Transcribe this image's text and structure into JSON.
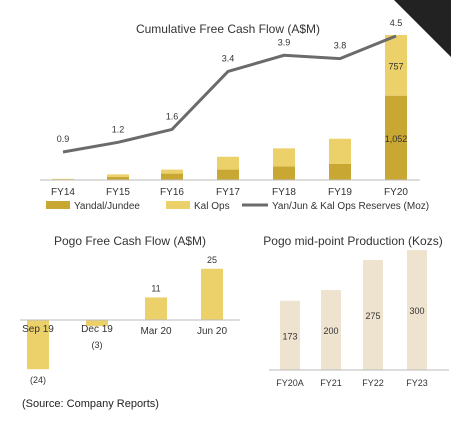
{
  "chart_data": [
    {
      "type": "bar",
      "title": "Cumulative Free Cash Flow (A$M)",
      "stacked": true,
      "categories": [
        "FY14",
        "FY15",
        "FY16",
        "FY17",
        "FY18",
        "FY19",
        "FY20"
      ],
      "series": [
        {
          "name": "Yandal/Jundee",
          "values": [
            5,
            40,
            80,
            130,
            170,
            200,
            1052
          ],
          "color": "#c9a733"
        },
        {
          "name": "Kal Ops",
          "values": [
            10,
            30,
            50,
            160,
            225,
            315,
            757
          ],
          "color": "#ecd06a"
        }
      ],
      "line_series": {
        "name": "Yan/Jun & Kal Ops Reserves (Moz)",
        "values": [
          0.9,
          1.2,
          1.6,
          3.4,
          3.9,
          3.8,
          4.5
        ],
        "labels": [
          "0.9",
          "1.2",
          "1.6",
          "3.4",
          "3.9",
          "3.8",
          "4.5"
        ],
        "color": "#6b6b6b"
      },
      "bar_labels": {
        "FY20_bottom": "1,052",
        "FY20_top": "757"
      },
      "legend_position": "bottom",
      "grid": false
    },
    {
      "type": "bar",
      "title": "Pogo Free Cash Flow (A$M)",
      "categories": [
        "Sep 19",
        "Dec 19",
        "Mar 20",
        "Jun 20"
      ],
      "values": [
        -24,
        -3,
        11,
        25
      ],
      "labels": [
        "(24)",
        "(3)",
        "11",
        "25"
      ],
      "color": "#ecd06a",
      "grid": false
    },
    {
      "type": "bar",
      "title": "Pogo mid-point Production (Kozs)",
      "categories": [
        "FY20A",
        "FY21",
        "FY22",
        "FY23"
      ],
      "values": [
        173,
        200,
        275,
        300
      ],
      "labels": [
        "173",
        "200",
        "275",
        "300"
      ],
      "color": "#eee3cf",
      "grid": false
    }
  ],
  "source_note": "(Source: Company Reports)"
}
